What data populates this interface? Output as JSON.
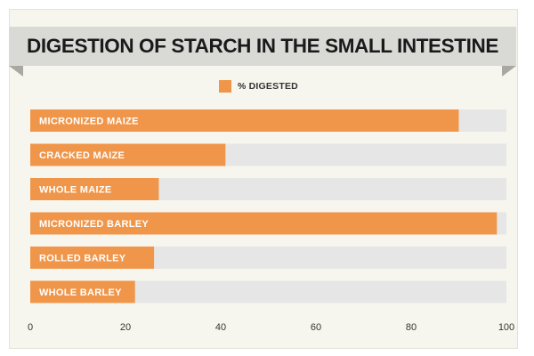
{
  "colors": {
    "bar": "#f0964a",
    "track": "#e6e6e6",
    "banner": "#d9d9d6",
    "text": "#1a1a1a"
  },
  "chart_data": {
    "type": "bar",
    "orientation": "horizontal",
    "title": "DIGESTION OF STARCH IN THE SMALL INTESTINE",
    "legend": {
      "label": "% DIGESTED",
      "placement": "top-center"
    },
    "categories": [
      "MICRONIZED MAIZE",
      "CRACKED MAIZE",
      "WHOLE MAIZE",
      "MICRONIZED BARLEY",
      "ROLLED BARLEY",
      "WHOLE BARLEY"
    ],
    "series": [
      {
        "name": "% DIGESTED",
        "values": [
          90,
          41,
          27,
          98,
          26,
          22
        ]
      }
    ],
    "xlim": [
      0,
      100
    ],
    "xticks": [
      "0",
      "20",
      "40",
      "60",
      "80",
      "100"
    ],
    "grid": false
  }
}
